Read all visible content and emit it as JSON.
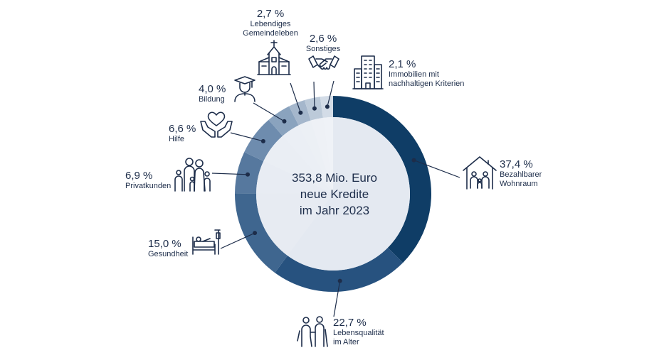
{
  "chart_data": {
    "type": "pie",
    "center_text": [
      "353,8 Mio. Euro",
      "neue Kredite",
      "im Jahr 2023"
    ],
    "slices": [
      {
        "percent_label": "37,4 %",
        "value": 37.4,
        "label_lines": [
          "Bezahlbarer",
          "Wohnraum"
        ],
        "color": "#0f3d66"
      },
      {
        "percent_label": "22,7 %",
        "value": 22.7,
        "label_lines": [
          "Lebensqualität",
          "im Alter"
        ],
        "color": "#27527f"
      },
      {
        "percent_label": "15,0 %",
        "value": 15.0,
        "label_lines": [
          "Gesundheit"
        ],
        "color": "#3f668f"
      },
      {
        "percent_label": "6,9 %",
        "value": 6.9,
        "label_lines": [
          "Privatkunden"
        ],
        "color": "#56789e"
      },
      {
        "percent_label": "6,6 %",
        "value": 6.6,
        "label_lines": [
          "Hilfe"
        ],
        "color": "#6e8cae"
      },
      {
        "percent_label": "4,0 %",
        "value": 4.0,
        "label_lines": [
          "Bildung"
        ],
        "color": "#8aa3be"
      },
      {
        "percent_label": "2,7 %",
        "value": 2.7,
        "label_lines": [
          "Lebendiges",
          "Gemeindeleben"
        ],
        "color": "#a5b7cc"
      },
      {
        "percent_label": "2,6 %",
        "value": 2.6,
        "label_lines": [
          "Sonstiges"
        ],
        "color": "#bccad9"
      },
      {
        "percent_label": "2,1 %",
        "value": 2.1,
        "label_lines": [
          "Immobilien mit",
          "nachhaltigen Kriterien"
        ],
        "color": "#d3dce7"
      }
    ],
    "inner_fill": "#e4e9f1",
    "icons": [
      "house-family-icon",
      "elderly-couple-icon",
      "hospital-bed-icon",
      "family-icon",
      "heart-hands-icon",
      "graduate-icon",
      "church-icon",
      "handshake-icon",
      "buildings-icon"
    ]
  }
}
